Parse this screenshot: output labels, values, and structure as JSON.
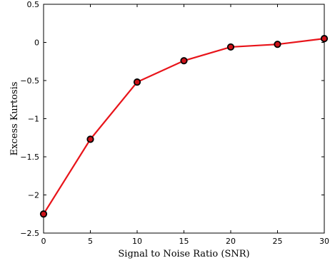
{
  "chart_data": {
    "type": "line",
    "title": "",
    "xlabel": "Signal to Noise Ratio (SNR)",
    "ylabel": "Excess Kurtosis",
    "xlim": [
      0,
      30
    ],
    "ylim": [
      -2.5,
      0.5
    ],
    "xticks": [
      0,
      5,
      10,
      15,
      20,
      25,
      30
    ],
    "yticks": [
      -2.5,
      -2,
      -1.5,
      -1,
      -0.5,
      0,
      0.5
    ],
    "xtick_labels": [
      "0",
      "5",
      "10",
      "15",
      "20",
      "25",
      "30"
    ],
    "ytick_labels": [
      "−2.5",
      "−2",
      "−1.5",
      "−1",
      "−0.5",
      "0",
      "0.5"
    ],
    "grid": false,
    "series": [
      {
        "x": [
          0,
          5,
          10,
          15,
          20,
          25,
          30
        ],
        "y": [
          -2.25,
          -1.27,
          -0.52,
          -0.24,
          -0.06,
          -0.025,
          0.05
        ],
        "line_color": "#e8141a",
        "marker_fill": "#cc1118",
        "marker_edge": "#000000"
      }
    ]
  }
}
